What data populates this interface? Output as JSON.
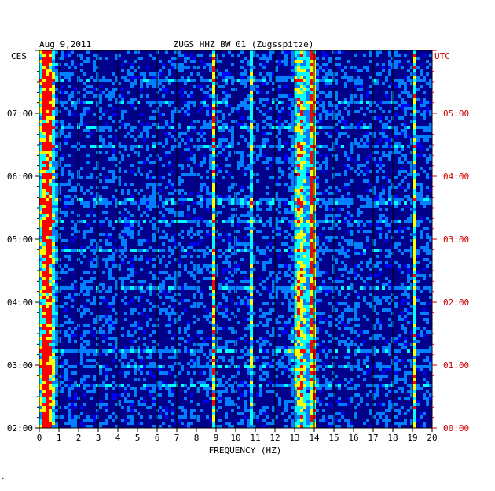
{
  "chart_data": {
    "type": "heatmap",
    "date": "Aug 9,2011",
    "title": "ZUGS HHZ BW 01 (Zugsspitze)",
    "xlabel": "FREQUENCY (HZ)",
    "xlim": [
      0,
      20
    ],
    "x_ticks": [
      "0",
      "1",
      "2",
      "3",
      "4",
      "5",
      "6",
      "7",
      "8",
      "9",
      "10",
      "11",
      "12",
      "13",
      "14",
      "15",
      "16",
      "17",
      "18",
      "19",
      "20"
    ],
    "left_axis_label": "CES",
    "right_axis_label": "UTC",
    "left_time_ticks": [
      {
        "label": "07:00",
        "hours_from_start": 5
      },
      {
        "label": "06:00",
        "hours_from_start": 4
      },
      {
        "label": "05:00",
        "hours_from_start": 3
      },
      {
        "label": "04:00",
        "hours_from_start": 2
      },
      {
        "label": "03:00",
        "hours_from_start": 1
      },
      {
        "label": "02:00",
        "hours_from_start": 0
      }
    ],
    "right_time_ticks": [
      {
        "label": "05:00",
        "hours_from_start": 5
      },
      {
        "label": "04:00",
        "hours_from_start": 4
      },
      {
        "label": "03:00",
        "hours_from_start": 3
      },
      {
        "label": "02:00",
        "hours_from_start": 2
      },
      {
        "label": "01:00",
        "hours_from_start": 1
      },
      {
        "label": "00:00",
        "hours_from_start": 0
      }
    ],
    "time_span_hours": 6,
    "colorscale": [
      "#00008b",
      "#0000ff",
      "#0080ff",
      "#00ffff",
      "#ffff00",
      "#ff0000"
    ],
    "energy_bands_hz": [
      {
        "center": 0.4,
        "width": 0.35,
        "intensity": 0.9
      },
      {
        "center": 8.9,
        "width": 0.08,
        "intensity": 0.55
      },
      {
        "center": 10.8,
        "width": 0.1,
        "intensity": 0.35
      },
      {
        "center": 13.3,
        "width": 0.35,
        "intensity": 0.55
      },
      {
        "center": 13.9,
        "width": 0.15,
        "intensity": 0.75
      },
      {
        "center": 19.1,
        "width": 0.06,
        "intensity": 0.5
      }
    ]
  },
  "colors": {
    "background": "#00008b",
    "text": "#000000",
    "utc_text": "#cc0000",
    "grid": "#000000"
  },
  "footer_mark": "*"
}
